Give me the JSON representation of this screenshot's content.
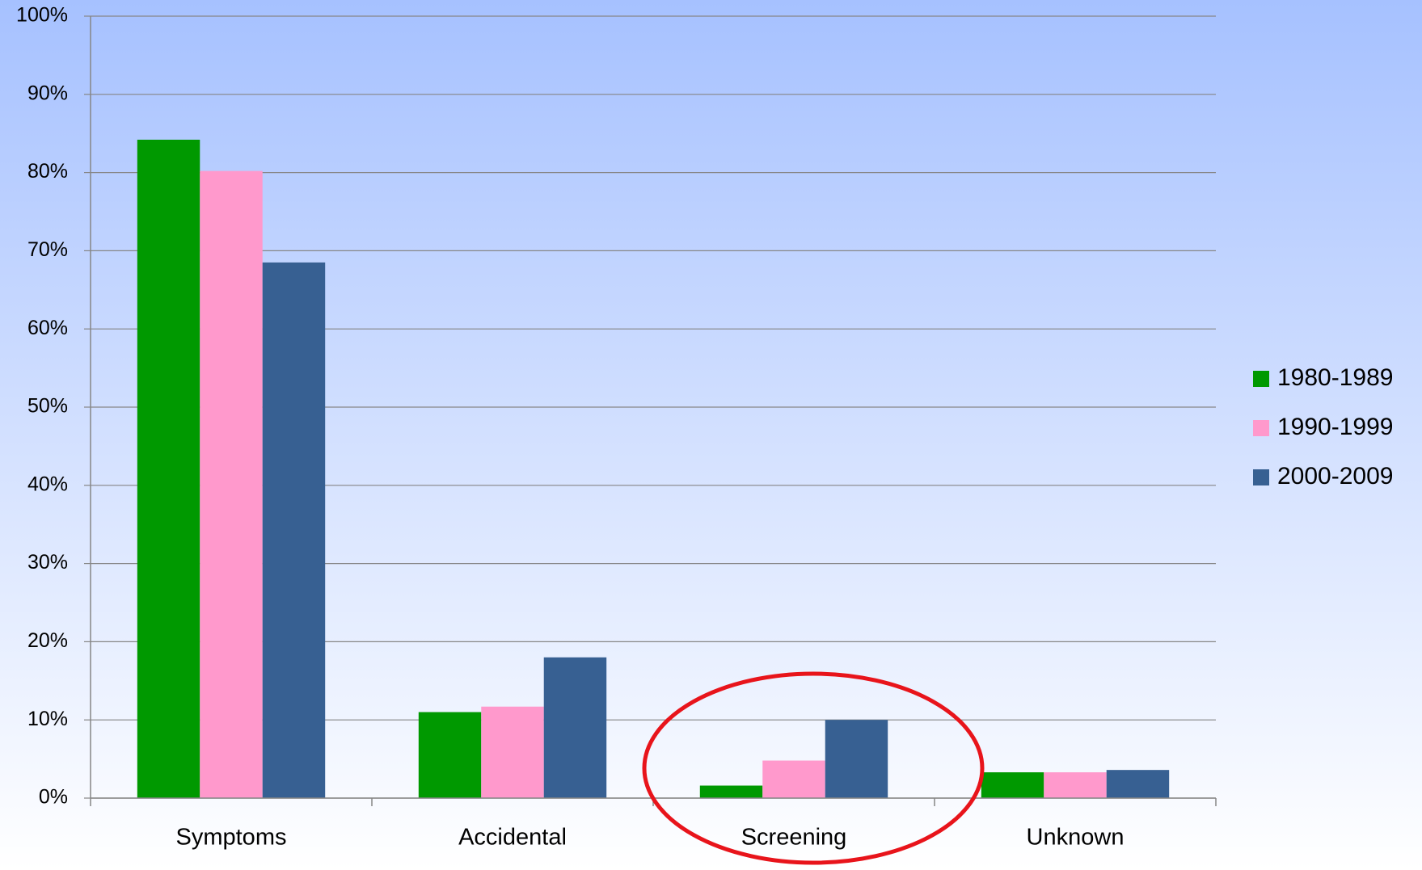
{
  "chart_data": {
    "type": "bar",
    "categories": [
      "Symptoms",
      "Accidental",
      "Screening",
      "Unknown"
    ],
    "series": [
      {
        "name": "1980-1989",
        "color": "#009900",
        "values": [
          84.2,
          11,
          1.6,
          3.3
        ]
      },
      {
        "name": "1990-1999",
        "color": "#ff99cc",
        "values": [
          80.2,
          11.7,
          4.8,
          3.3
        ]
      },
      {
        "name": "2000-2009",
        "color": "#376092",
        "values": [
          68.5,
          18,
          10,
          3.6
        ]
      }
    ],
    "ylim": [
      0,
      100
    ],
    "yticks": [
      {
        "value": 0,
        "label": "0%"
      },
      {
        "value": 10,
        "label": "10%"
      },
      {
        "value": 20,
        "label": "20%"
      },
      {
        "value": 30,
        "label": "30%"
      },
      {
        "value": 40,
        "label": "40%"
      },
      {
        "value": 50,
        "label": "50%"
      },
      {
        "value": 60,
        "label": "60%"
      },
      {
        "value": 70,
        "label": "70%"
      },
      {
        "value": 80,
        "label": "80%"
      },
      {
        "value": 90,
        "label": "90%"
      },
      {
        "value": 100,
        "label": "100%"
      }
    ],
    "grid": true,
    "legend": "right"
  }
}
